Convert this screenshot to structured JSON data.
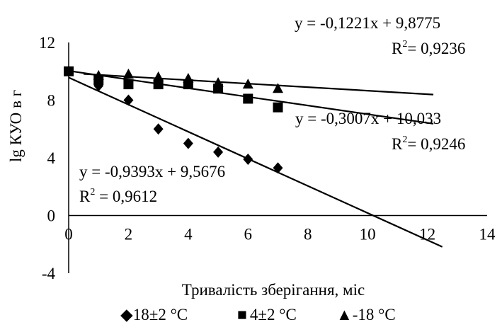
{
  "chart_data": {
    "type": "scatter",
    "xlabel": "Тривалість зберігання, міс",
    "ylabel": "lg КУО в г",
    "xlim": [
      0,
      14
    ],
    "ylim": [
      -4,
      12
    ],
    "x_ticks": [
      "0",
      "2",
      "4",
      "6",
      "8",
      "10",
      "12",
      "14"
    ],
    "y_ticks": [
      "-4",
      "0",
      "4",
      "8",
      "12"
    ],
    "grid": false,
    "legend_position": "bottom",
    "series": [
      {
        "name": "18±2 °C",
        "marker": "diamond",
        "x": [
          0,
          1,
          2,
          3,
          4,
          5,
          6,
          7
        ],
        "y": [
          10.0,
          9.0,
          8.0,
          6.0,
          5.0,
          4.4,
          3.9,
          3.3
        ],
        "trendline": {
          "slope": -0.9393,
          "intercept": 9.5676,
          "x_range": [
            0,
            12.5
          ]
        },
        "equation": "y = -0,9393x + 9,5676",
        "r2_label": "R",
        "r2_sup": "2",
        "r2_value": " = 0,9612"
      },
      {
        "name": "4±2 °C",
        "marker": "square",
        "x": [
          0,
          1,
          2,
          3,
          4,
          5,
          6,
          7
        ],
        "y": [
          10.0,
          9.4,
          9.1,
          9.1,
          9.1,
          8.8,
          8.1,
          7.5
        ],
        "trendline": {
          "slope": -0.3007,
          "intercept": 10.033,
          "x_range": [
            0,
            12.2
          ]
        },
        "equation": "y = -0,3007x + 10,033",
        "r2_label": "R",
        "r2_sup": "2",
        "r2_value": "= 0,9246"
      },
      {
        "name": "-18 °C",
        "marker": "triangle",
        "x": [
          1,
          2,
          3,
          4,
          5,
          6,
          7
        ],
        "y": [
          9.7,
          9.8,
          9.6,
          9.5,
          9.2,
          9.1,
          8.8
        ],
        "trendline": {
          "slope": -0.1221,
          "intercept": 9.8775,
          "x_range": [
            0.5,
            12.2
          ]
        },
        "equation": "y = -0,1221x + 9,8775",
        "r2_label": "R",
        "r2_sup": "2",
        "r2_value": "= 0,9236"
      }
    ]
  },
  "legend": {
    "items": [
      {
        "symbol": "◆",
        "label": "18±2 °C"
      },
      {
        "symbol": "■",
        "label": "4±2 °C"
      },
      {
        "symbol": "▲",
        "label": "-18 °C"
      }
    ]
  }
}
